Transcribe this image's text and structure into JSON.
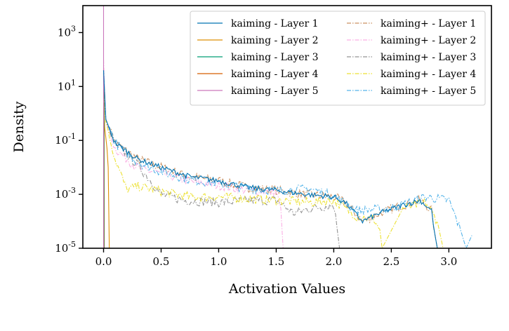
{
  "chart_data": {
    "type": "line",
    "title": "",
    "xlabel": "Activation Values",
    "ylabel": "Density",
    "xlim": [
      -0.18,
      3.37
    ],
    "ylim": [
      1e-05,
      10000.0
    ],
    "yscale": "log",
    "grid": false,
    "legend_position": "top-right",
    "x_ticks": [
      "0.0",
      "0.5",
      "1.0",
      "1.5",
      "2.0",
      "2.5",
      "3.0"
    ],
    "x_tick_values": [
      0,
      0.5,
      1,
      1.5,
      2,
      2.5,
      3
    ],
    "y_ticks": [
      "10^3",
      "10^1",
      "10^-1",
      "10^-3",
      "10^-5"
    ],
    "y_tick_values": [
      1000.0,
      10.0,
      0.1,
      0.001,
      1e-05
    ],
    "series": [
      {
        "name": "kaiming - Layer 1",
        "color": "#0173B2",
        "style": "solid",
        "x": [
          0,
          0.02,
          0.1,
          0.3,
          0.5,
          0.75,
          1.0,
          1.25,
          1.5,
          1.75,
          2.0,
          2.1,
          2.25,
          2.4,
          2.6,
          2.75,
          2.85,
          2.88,
          2.9
        ],
        "y": [
          40,
          0.6,
          0.08,
          0.02,
          0.01,
          0.0045,
          0.0032,
          0.0018,
          0.0014,
          0.001,
          0.0008,
          0.0005,
          0.0001,
          0.0002,
          0.0004,
          0.0006,
          0.00025,
          3e-05,
          1e-05
        ]
      },
      {
        "name": "kaiming - Layer 2",
        "color": "#DE8F05",
        "style": "solid",
        "x": [
          0,
          0.01,
          0.03,
          0.04,
          0.05
        ],
        "y": [
          8,
          0.3,
          0.05,
          0.01,
          1e-05
        ]
      },
      {
        "name": "kaiming - Layer 3",
        "color": "#029E73",
        "style": "solid",
        "x": [
          0,
          0.005,
          0.006
        ],
        "y": [
          20,
          1,
          1e-05
        ]
      },
      {
        "name": "kaiming - Layer 4",
        "color": "#D55E00",
        "style": "solid",
        "x": [
          0,
          0.002,
          0.003
        ],
        "y": [
          30,
          2,
          1e-05
        ]
      },
      {
        "name": "kaiming - Layer 5",
        "color": "#CC78BC",
        "style": "solid",
        "x": [
          0,
          0,
          0.001
        ],
        "y": [
          10000,
          1e-05,
          1e-05
        ]
      },
      {
        "name": "kaiming+ - Layer 1",
        "color": "#CA9161",
        "style": "dashdot",
        "x": [
          0,
          0.02,
          0.1,
          0.3,
          0.5,
          0.75,
          1.0,
          1.25,
          1.5,
          1.75,
          2.0,
          2.1,
          2.25,
          2.4,
          2.6,
          2.75,
          2.85,
          2.88,
          2.9
        ],
        "y": [
          40,
          0.6,
          0.08,
          0.02,
          0.01,
          0.0045,
          0.0032,
          0.0018,
          0.0014,
          0.001,
          0.0008,
          0.0005,
          0.0001,
          0.0002,
          0.0004,
          0.0006,
          0.00025,
          3e-05,
          1e-05
        ]
      },
      {
        "name": "kaiming+ - Layer 2",
        "color": "#FBAFE4",
        "style": "dashdot",
        "x": [
          0,
          0.02,
          0.1,
          0.3,
          0.5,
          0.75,
          1.0,
          1.25,
          1.5,
          1.54,
          1.56
        ],
        "y": [
          100,
          0.5,
          0.05,
          0.009,
          0.006,
          0.003,
          0.0022,
          0.0014,
          0.0012,
          0.0003,
          1e-05
        ]
      },
      {
        "name": "kaiming+ - Layer 3",
        "color": "#949494",
        "style": "dashdot",
        "x": [
          0,
          0.02,
          0.1,
          0.3,
          0.5,
          0.7,
          1.0,
          1.3,
          1.5,
          1.65,
          1.8,
          2.0,
          2.03,
          2.05
        ],
        "y": [
          10,
          0.5,
          0.08,
          0.012,
          0.001,
          0.0006,
          0.0005,
          0.0006,
          0.0006,
          0.0002,
          0.0003,
          0.0004,
          5e-05,
          1e-05
        ]
      },
      {
        "name": "kaiming+ - Layer 4",
        "color": "#ECE133",
        "style": "dashdot",
        "x": [
          0,
          0.02,
          0.1,
          0.2,
          0.3,
          0.5,
          0.75,
          1.0,
          1.5,
          1.8,
          2.0,
          2.2,
          2.35,
          2.4,
          2.42,
          2.6,
          2.8,
          2.9,
          2.95
        ],
        "y": [
          20,
          0.5,
          0.02,
          0.0015,
          0.002,
          0.0013,
          0.0008,
          0.0008,
          0.0006,
          0.0005,
          0.0006,
          0.00015,
          0.00012,
          5e-05,
          1e-05,
          0.0003,
          0.0005,
          0.0001,
          1e-05
        ]
      },
      {
        "name": "kaiming+ - Layer 5",
        "color": "#56B4E9",
        "style": "dashdot",
        "x": [
          0,
          0.02,
          0.1,
          0.3,
          0.5,
          0.75,
          1.0,
          1.25,
          1.5,
          1.8,
          2.0,
          2.2,
          2.5,
          2.8,
          3.0,
          3.1,
          3.15,
          3.2
        ],
        "y": [
          40,
          0.6,
          0.08,
          0.015,
          0.007,
          0.0035,
          0.0025,
          0.0017,
          0.0014,
          0.0016,
          0.0009,
          0.00025,
          0.0003,
          0.0008,
          0.0006,
          5e-05,
          1e-05,
          3e-05
        ]
      }
    ]
  }
}
